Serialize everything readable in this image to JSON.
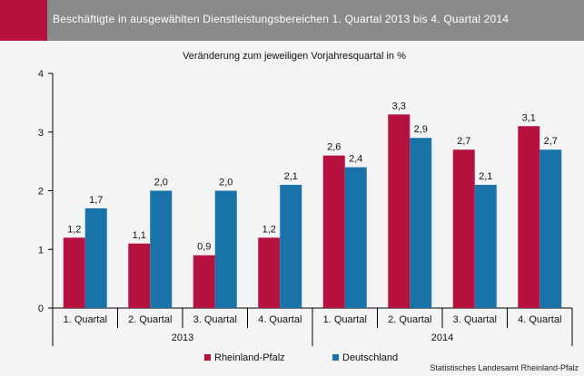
{
  "header": {
    "title": "Beschäftigte in ausgewählten Dienstleistungsbereichen 1. Quartal 2013 bis 4. Quartal 2014"
  },
  "source": "Statistisches Landesamt Rheinland-Pfalz",
  "colors": {
    "header_bg": "#8a8a8a",
    "accent": "#b5123f",
    "rheinland_pfalz": "#b5123f",
    "deutschland": "#1a73a8"
  },
  "chart_data": {
    "type": "bar",
    "subtitle": "Veränderung zum jeweiligen Vorjahresquartal in %",
    "categories": [
      "1. Quartal",
      "2. Quartal",
      "3. Quartal",
      "4. Quartal",
      "1. Quartal",
      "2. Quartal",
      "3. Quartal",
      "4. Quartal"
    ],
    "groups": [
      {
        "label": "2013",
        "start": 0,
        "end": 3
      },
      {
        "label": "2014",
        "start": 4,
        "end": 7
      }
    ],
    "series": [
      {
        "name": "Rheinland-Pfalz",
        "values": [
          1.2,
          1.1,
          0.9,
          1.2,
          2.6,
          3.3,
          2.7,
          3.1
        ],
        "labels": [
          "1,2",
          "1,1",
          "0,9",
          "1,2",
          "2,6",
          "3,3",
          "2,7",
          "3,1"
        ]
      },
      {
        "name": "Deutschland",
        "values": [
          1.7,
          2.0,
          2.0,
          2.1,
          2.4,
          2.9,
          2.1,
          2.7
        ],
        "labels": [
          "1,7",
          "2,0",
          "2,0",
          "2,1",
          "2,4",
          "2,9",
          "2,1",
          "2,7"
        ]
      }
    ],
    "yticks": [
      0,
      1,
      2,
      3,
      4
    ],
    "ylim": [
      0,
      4
    ],
    "grid": false,
    "legend_position": "bottom"
  }
}
